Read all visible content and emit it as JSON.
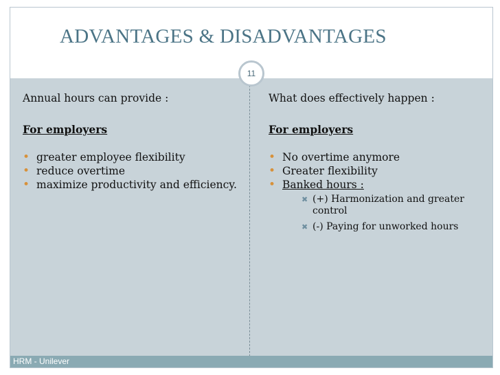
{
  "slide": {
    "title": "ADVANTAGES & DISADVANTAGES",
    "page_number": "11",
    "footer": "HRM - Unilever"
  },
  "left": {
    "intro": "Annual hours can provide :",
    "heading": "For employers ",
    "items": [
      "greater employee flexibility",
      "reduce overtime",
      "maximize productivity and efficiency."
    ]
  },
  "right": {
    "intro": "What does effectively happen :",
    "heading": "For employers",
    "items": [
      "No overtime anymore",
      "Greater flexibility",
      "Banked hours :"
    ],
    "sub_items": [
      "(+) Harmonization and greater control",
      "(-) Paying for unworked hours"
    ]
  },
  "icons": {
    "bullet_color": "#d7913a",
    "sub_bullet": "x-mark-icon"
  }
}
